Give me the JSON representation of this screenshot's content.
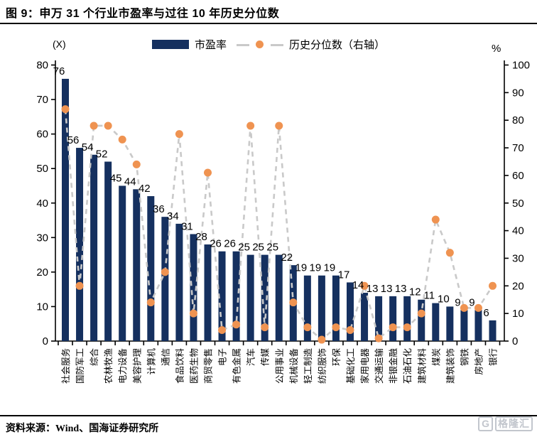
{
  "title": "图 9：申万 31 个行业市盈率与过往 10 年历史分位数",
  "legend": {
    "pe_label": "市盈率",
    "percentile_label": "历史分位数（右轴）"
  },
  "axes": {
    "left_unit": "(X)",
    "right_unit": "%"
  },
  "footer": {
    "source": "资料来源：Wind、国海证券研究所"
  },
  "watermark": {
    "logo_letter": "G",
    "text": "格隆汇"
  },
  "colors": {
    "bar": "#15305f",
    "marker": "#ef9351",
    "dash_line": "#c9c9c9",
    "axis": "#000000",
    "text": "#000000",
    "watermark": "#bcc0c8"
  },
  "chart_data": {
    "type": "combo",
    "categories": [
      "社会服务",
      "国防军工",
      "综合",
      "农林牧渔",
      "电力设备",
      "美容护理",
      "计算机",
      "通信",
      "食品饮料",
      "医药生物",
      "商贸零售",
      "电子",
      "有色金属",
      "汽车",
      "传媒",
      "公用事业",
      "机械设备",
      "轻工制造",
      "纺织服饰",
      "环保",
      "基础化工",
      "家用电器",
      "交通运输",
      "非银金融",
      "石油石化",
      "建筑材料",
      "煤炭",
      "建筑装饰",
      "钢铁",
      "房地产",
      "银行"
    ],
    "series": [
      {
        "name": "市盈率",
        "type": "bar",
        "axis": "left",
        "labels_visible": true,
        "values": [
          76,
          56,
          54,
          52,
          45,
          44,
          42,
          36,
          34,
          31,
          28,
          26,
          26,
          25,
          25,
          25,
          22,
          19,
          19,
          19,
          17,
          14,
          13,
          13,
          13,
          12,
          11,
          10,
          9,
          9,
          6
        ]
      },
      {
        "name": "历史分位数（右轴）",
        "type": "line",
        "axis": "right",
        "style": "dashed-with-markers",
        "values": [
          84,
          20,
          78,
          78,
          73,
          64,
          14,
          25,
          75,
          10,
          61,
          4,
          6,
          78,
          5,
          78,
          14,
          5,
          0.5,
          5,
          4,
          20,
          1,
          5,
          5,
          10,
          44,
          32,
          12,
          12,
          20
        ]
      }
    ],
    "left_axis": {
      "unit": "(X)",
      "min": 0,
      "max": 80,
      "step": 10
    },
    "right_axis": {
      "unit": "%",
      "min": 0,
      "max": 100,
      "step": 10
    },
    "grid": false,
    "legend_position": "top-center",
    "x_labels_orientation": "vertical-bottom-to-top"
  }
}
